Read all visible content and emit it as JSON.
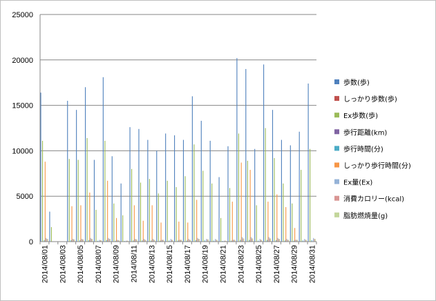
{
  "chart_data": {
    "type": "bar",
    "ylim": [
      0,
      25000
    ],
    "yticks": [
      0,
      5000,
      10000,
      15000,
      20000,
      25000
    ],
    "grid": "horizontal",
    "legend_position": "right",
    "categories": [
      "2014/08/01",
      "2014/08/02",
      "2014/08/03",
      "2014/08/04",
      "2014/08/05",
      "2014/08/06",
      "2014/08/07",
      "2014/08/08",
      "2014/08/09",
      "2014/08/10",
      "2014/08/11",
      "2014/08/12",
      "2014/08/13",
      "2014/08/14",
      "2014/08/15",
      "2014/08/16",
      "2014/08/17",
      "2014/08/18",
      "2014/08/19",
      "2014/08/20",
      "2014/08/21",
      "2014/08/22",
      "2014/08/23",
      "2014/08/24",
      "2014/08/25",
      "2014/08/26",
      "2014/08/27",
      "2014/08/28",
      "2014/08/29",
      "2014/08/30",
      "2014/08/31"
    ],
    "xtick_labels": [
      "2014/08/01",
      "2014/08/03",
      "2014/08/05",
      "2014/08/07",
      "2014/08/09",
      "2014/08/11",
      "2014/08/13",
      "2014/08/15",
      "2014/08/17",
      "2014/08/19",
      "2014/08/21",
      "2014/08/23",
      "2014/08/25",
      "2014/08/27",
      "2014/08/29",
      "2014/08/31"
    ],
    "series": [
      {
        "name": "歩数(歩)",
        "color": "#4f81bd",
        "values": [
          16400,
          3300,
          0,
          15500,
          14500,
          17000,
          9000,
          18100,
          9400,
          6400,
          12600,
          12400,
          11200,
          10000,
          11900,
          11700,
          11200,
          16000,
          13300,
          11100,
          7100,
          10500,
          20200,
          19000,
          10200,
          19500,
          14500,
          11200,
          10600,
          12100,
          17400
        ]
      },
      {
        "name": "しっかり歩数(歩)",
        "color": "#c0504d",
        "values": [
          0,
          0,
          0,
          0,
          0,
          0,
          0,
          0,
          0,
          0,
          0,
          0,
          0,
          0,
          0,
          0,
          0,
          0,
          0,
          0,
          0,
          0,
          0,
          0,
          0,
          0,
          0,
          0,
          0,
          0,
          0
        ]
      },
      {
        "name": "Ex歩数(歩)",
        "color": "#9bbb59",
        "values": [
          11100,
          1600,
          0,
          9100,
          9000,
          11400,
          3500,
          11100,
          4200,
          2900,
          8000,
          6500,
          6900,
          5300,
          6700,
          6000,
          7200,
          10700,
          7800,
          6400,
          2600,
          5900,
          11900,
          8900,
          4000,
          12500,
          9200,
          6400,
          4200,
          7900,
          10200
        ]
      },
      {
        "name": "歩行距離(km)",
        "color": "#8064a2",
        "values": [
          10,
          2,
          0,
          10,
          9,
          11,
          6,
          11,
          6,
          4,
          8,
          8,
          7,
          6,
          8,
          7,
          7,
          10,
          8,
          7,
          5,
          7,
          13,
          12,
          7,
          12,
          9,
          7,
          7,
          8,
          11
        ]
      },
      {
        "name": "歩行時間(分)",
        "color": "#4bacc6",
        "values": [
          160,
          40,
          0,
          160,
          150,
          170,
          100,
          180,
          100,
          80,
          130,
          130,
          120,
          110,
          120,
          120,
          120,
          160,
          140,
          120,
          80,
          110,
          200,
          190,
          110,
          190,
          150,
          120,
          110,
          130,
          170
        ]
      },
      {
        "name": "しっかり歩行時間(分)",
        "color": "#f79646",
        "values": [
          8800,
          0,
          0,
          3900,
          4000,
          5400,
          0,
          6700,
          2600,
          0,
          4000,
          2300,
          4000,
          2100,
          0,
          2200,
          2100,
          4600,
          0,
          0,
          0,
          4400,
          8700,
          7900,
          0,
          4400,
          5200,
          3800,
          1500,
          0,
          0
        ]
      },
      {
        "name": "Ex量(Ex)",
        "color": "#95b3d7",
        "values": [
          400,
          0,
          0,
          300,
          300,
          400,
          200,
          400,
          200,
          100,
          300,
          300,
          300,
          200,
          300,
          200,
          300,
          400,
          300,
          300,
          100,
          200,
          500,
          500,
          300,
          500,
          400,
          300,
          200,
          300,
          400
        ]
      },
      {
        "name": "消費カロリー(kcal)",
        "color": "#d99694",
        "values": [
          300,
          0,
          0,
          250,
          250,
          300,
          150,
          300,
          150,
          100,
          250,
          200,
          200,
          200,
          200,
          200,
          200,
          300,
          250,
          200,
          100,
          200,
          350,
          350,
          200,
          350,
          300,
          200,
          200,
          200,
          300
        ]
      },
      {
        "name": "脂肪燃焼量(g)",
        "color": "#c3d69b",
        "values": [
          300,
          0,
          0,
          250,
          250,
          300,
          150,
          300,
          150,
          100,
          250,
          200,
          200,
          200,
          200,
          200,
          200,
          300,
          250,
          200,
          100,
          200,
          350,
          350,
          200,
          350,
          300,
          200,
          200,
          200,
          300
        ]
      }
    ]
  }
}
